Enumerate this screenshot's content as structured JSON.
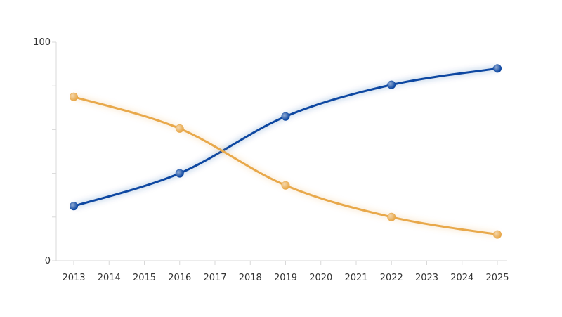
{
  "chart_data": {
    "type": "line",
    "title": "",
    "xlabel": "",
    "ylabel": "",
    "x": [
      2013,
      2014,
      2015,
      2016,
      2017,
      2018,
      2019,
      2020,
      2021,
      2022,
      2023,
      2024,
      2025
    ],
    "x_tick_labels": [
      "2013",
      "2014",
      "2015",
      "2016",
      "2017",
      "2018",
      "2019",
      "2020",
      "2021",
      "2022",
      "2023",
      "2024",
      "2025"
    ],
    "xlim": [
      2013,
      2025
    ],
    "ylim": [
      0,
      100
    ],
    "y_tick_labels": [
      "0",
      "100"
    ],
    "y_minor_ticks": [
      20,
      40,
      60,
      80
    ],
    "grid": false,
    "legend": "none",
    "series": [
      {
        "color": "#0d47a1",
        "points": [
          {
            "x": 2013,
            "y": 25
          },
          {
            "x": 2016,
            "y": 40
          },
          {
            "x": 2019,
            "y": 66
          },
          {
            "x": 2022,
            "y": 80.5
          },
          {
            "x": 2025,
            "y": 88
          }
        ]
      },
      {
        "color": "#e8a84a",
        "points": [
          {
            "x": 2013,
            "y": 75
          },
          {
            "x": 2016,
            "y": 60.5
          },
          {
            "x": 2019,
            "y": 34.5
          },
          {
            "x": 2022,
            "y": 20
          },
          {
            "x": 2025,
            "y": 12
          }
        ]
      }
    ]
  }
}
